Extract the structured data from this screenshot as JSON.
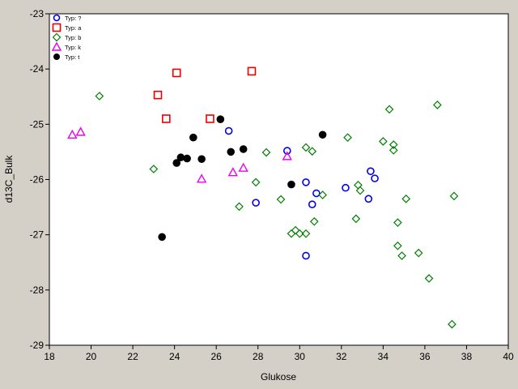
{
  "chart_data": {
    "type": "scatter",
    "xlabel": "Glukose",
    "ylabel": "d13C_Bulk",
    "xlim": [
      18,
      40
    ],
    "ylim": [
      -29,
      -23
    ],
    "xticks": [
      18,
      20,
      22,
      24,
      26,
      28,
      30,
      32,
      34,
      36,
      38,
      40
    ],
    "yticks": [
      -29,
      -28,
      -27,
      -26,
      -25,
      -24,
      -23
    ],
    "grid": false,
    "legend_placement": "top-left",
    "series": [
      {
        "name": "Typ: ?",
        "marker": "circle",
        "color": "#0000ee",
        "points": [
          [
            26.6,
            -25.12
          ],
          [
            27.9,
            -26.42
          ],
          [
            29.4,
            -25.48
          ],
          [
            30.3,
            -26.05
          ],
          [
            30.6,
            -26.45
          ],
          [
            30.8,
            -26.25
          ],
          [
            30.3,
            -27.38
          ],
          [
            32.2,
            -26.15
          ],
          [
            33.4,
            -25.85
          ],
          [
            33.6,
            -25.98
          ],
          [
            33.3,
            -26.35
          ]
        ]
      },
      {
        "name": "Typ: a",
        "marker": "square",
        "color": "#ee0000",
        "points": [
          [
            23.2,
            -24.47
          ],
          [
            24.1,
            -24.07
          ],
          [
            23.6,
            -24.9
          ],
          [
            25.7,
            -24.9
          ],
          [
            27.7,
            -24.04
          ]
        ]
      },
      {
        "name": "Typ: b",
        "marker": "diamond",
        "color": "#008000",
        "points": [
          [
            20.4,
            -24.49
          ],
          [
            23.0,
            -25.81
          ],
          [
            27.1,
            -26.49
          ],
          [
            27.9,
            -26.05
          ],
          [
            28.4,
            -25.51
          ],
          [
            29.1,
            -26.36
          ],
          [
            29.6,
            -26.98
          ],
          [
            29.8,
            -26.92
          ],
          [
            30.0,
            -26.98
          ],
          [
            30.3,
            -26.98
          ],
          [
            30.3,
            -25.42
          ],
          [
            30.6,
            -25.49
          ],
          [
            30.7,
            -26.76
          ],
          [
            31.1,
            -26.28
          ],
          [
            32.3,
            -25.24
          ],
          [
            32.7,
            -26.71
          ],
          [
            32.8,
            -26.1
          ],
          [
            32.9,
            -26.2
          ],
          [
            34.0,
            -25.31
          ],
          [
            34.3,
            -24.73
          ],
          [
            34.5,
            -25.37
          ],
          [
            34.5,
            -25.47
          ],
          [
            34.7,
            -27.2
          ],
          [
            34.7,
            -26.78
          ],
          [
            34.9,
            -27.38
          ],
          [
            35.1,
            -26.35
          ],
          [
            35.7,
            -27.33
          ],
          [
            36.2,
            -27.79
          ],
          [
            36.6,
            -24.65
          ],
          [
            37.3,
            -28.62
          ],
          [
            37.4,
            -26.3
          ]
        ]
      },
      {
        "name": "Typ: k",
        "marker": "triangle",
        "color": "#ee00ee",
        "points": [
          [
            19.1,
            -25.19
          ],
          [
            19.5,
            -25.14
          ],
          [
            25.3,
            -25.99
          ],
          [
            26.8,
            -25.87
          ],
          [
            27.3,
            -25.79
          ],
          [
            29.4,
            -25.58
          ]
        ]
      },
      {
        "name": "Typ: t",
        "marker": "filled-circle",
        "color": "#000000",
        "points": [
          [
            23.4,
            -27.04
          ],
          [
            24.1,
            -25.7
          ],
          [
            24.3,
            -25.6
          ],
          [
            24.6,
            -25.62
          ],
          [
            24.9,
            -25.24
          ],
          [
            25.3,
            -25.63
          ],
          [
            26.2,
            -24.91
          ],
          [
            26.7,
            -25.5
          ],
          [
            27.3,
            -25.45
          ],
          [
            29.6,
            -26.09
          ],
          [
            31.1,
            -25.19
          ]
        ]
      }
    ]
  }
}
